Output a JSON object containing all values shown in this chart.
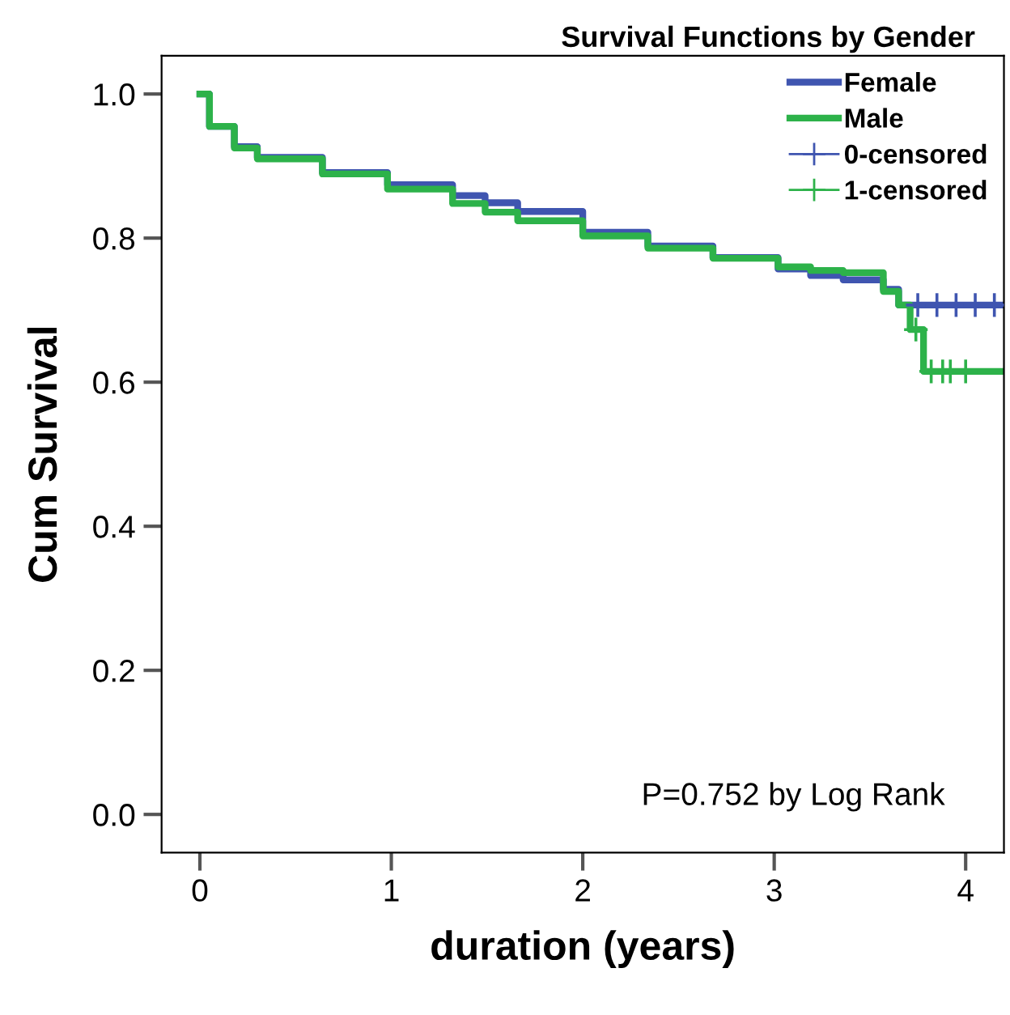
{
  "chart_data": {
    "type": "step",
    "title": "Survival Functions by Gender",
    "xlabel": "duration (years)",
    "ylabel": "Cum Survival",
    "annotations": [
      "P=0.752 by Log Rank"
    ],
    "series": [
      {
        "name": "Female",
        "color": "#3f55b0",
        "x": [
          0,
          0.05,
          0.18,
          0.3,
          0.64,
          0.98,
          1.32,
          1.49,
          1.66,
          2.0,
          2.34,
          2.68,
          3.02,
          3.19,
          3.36,
          3.57,
          3.65,
          4.2
        ],
        "values": [
          1.0,
          0.955,
          0.927,
          0.912,
          0.891,
          0.874,
          0.859,
          0.849,
          0.837,
          0.808,
          0.789,
          0.773,
          0.757,
          0.748,
          0.742,
          0.729,
          0.707,
          0.707
        ]
      },
      {
        "name": "Male",
        "color": "#2db24a",
        "x": [
          0,
          0.05,
          0.18,
          0.3,
          0.64,
          0.98,
          1.32,
          1.49,
          1.66,
          2.0,
          2.34,
          2.68,
          3.02,
          3.19,
          3.36,
          3.57,
          3.65,
          3.71,
          3.78,
          4.2
        ],
        "values": [
          1.0,
          0.955,
          0.925,
          0.91,
          0.889,
          0.868,
          0.848,
          0.836,
          0.824,
          0.803,
          0.786,
          0.772,
          0.76,
          0.755,
          0.752,
          0.726,
          0.707,
          0.673,
          0.615,
          0.615
        ]
      },
      {
        "name": "0-censored",
        "type": "scatter",
        "marker": "cross",
        "color": "#3f55b0",
        "x": [
          3.75,
          3.85,
          3.95,
          4.05,
          4.15
        ],
        "values": [
          0.707,
          0.707,
          0.707,
          0.707,
          0.707
        ]
      },
      {
        "name": "1-censored",
        "type": "scatter",
        "marker": "cross",
        "color": "#2db24a",
        "x": [
          3.74,
          3.82,
          3.88,
          3.92,
          4.0
        ],
        "values": [
          0.673,
          0.615,
          0.615,
          0.615,
          0.615
        ]
      }
    ],
    "xlim": [
      -0.2,
      4.2
    ],
    "ylim": [
      -0.053,
      1.053
    ],
    "xticks": [
      0,
      1,
      2,
      3,
      4
    ],
    "yticks": [
      {
        "value": 0,
        "label": "0.0"
      },
      {
        "value": 0.2,
        "label": "0.2"
      },
      {
        "value": 0.4,
        "label": "0.4"
      },
      {
        "value": 0.6,
        "label": "0.6"
      },
      {
        "value": 0.8,
        "label": "0.8"
      },
      {
        "value": 1,
        "label": "1.0"
      }
    ],
    "grid": false,
    "legend": "top right"
  }
}
